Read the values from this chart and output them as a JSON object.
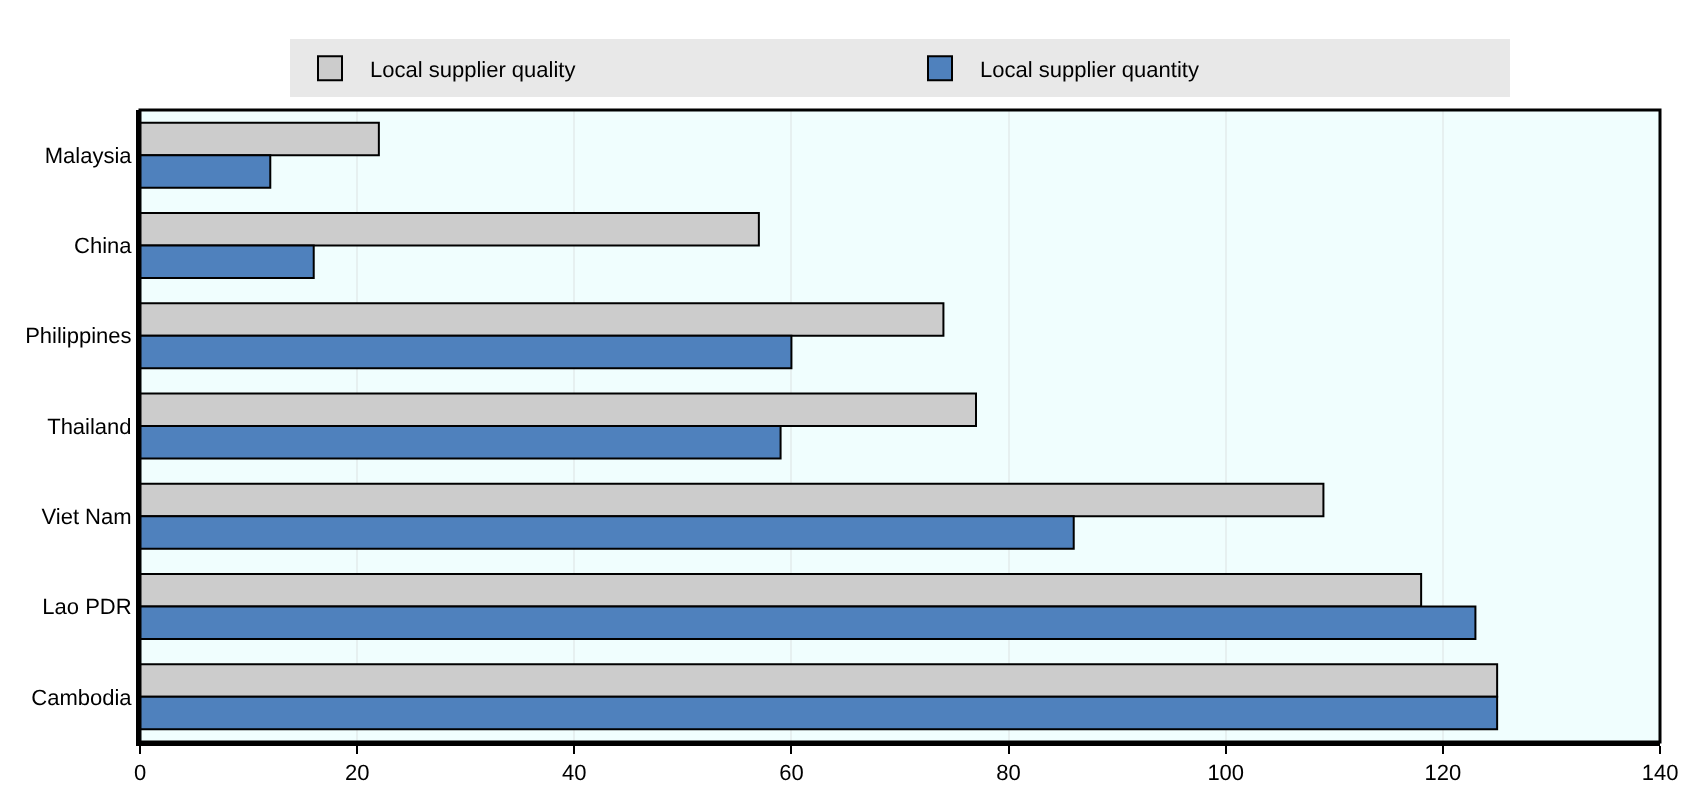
{
  "chart_data": {
    "type": "bar",
    "orientation": "horizontal",
    "categories": [
      "Malaysia",
      "China",
      "Philippines",
      "Thailand",
      "Viet Nam",
      "Lao PDR",
      "Cambodia"
    ],
    "series": [
      {
        "name": "Local supplier quality",
        "color": "#cccccc",
        "values": [
          22,
          57,
          74,
          77,
          109,
          118,
          125
        ]
      },
      {
        "name": "Local supplier quantity",
        "color": "#4f81bd",
        "values": [
          12,
          16,
          60,
          59,
          86,
          123,
          125
        ]
      }
    ],
    "xlim": [
      0,
      140
    ],
    "xticks": [
      0,
      20,
      40,
      60,
      80,
      100,
      120,
      140
    ],
    "grid": "x",
    "legend": "top"
  }
}
